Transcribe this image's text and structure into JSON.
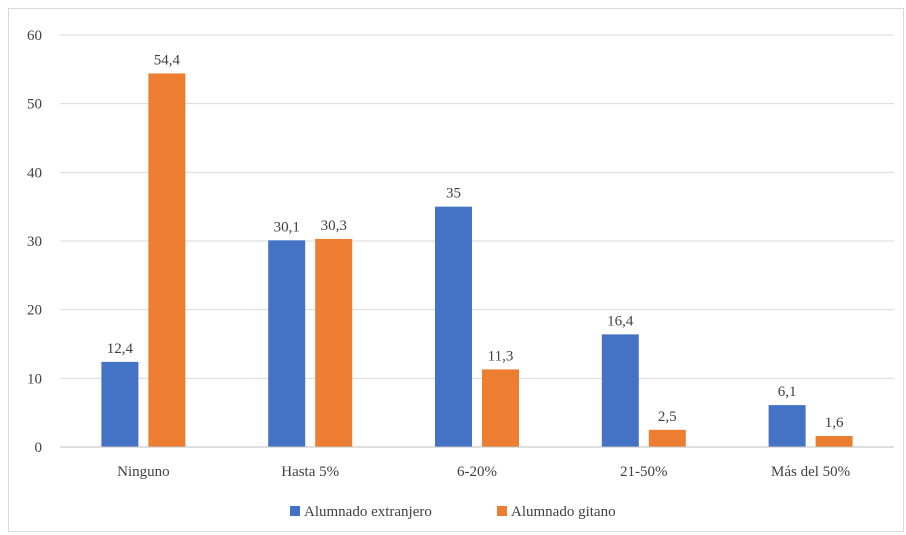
{
  "chart_data": {
    "type": "bar",
    "title": "",
    "xlabel": "",
    "ylabel": "",
    "ylim": [
      0,
      60
    ],
    "yticks": [
      0,
      10,
      20,
      30,
      40,
      50,
      60
    ],
    "grid": true,
    "legend_position": "bottom",
    "categories": [
      "Ninguno",
      "Hasta 5%",
      "6-20%",
      "21-50%",
      "Más del 50%"
    ],
    "series": [
      {
        "name": "Alumnado extranjero",
        "color": "#4472c4",
        "values": [
          12.4,
          30.1,
          35,
          16.4,
          6.1
        ],
        "labels": [
          "12,4",
          "30,1",
          "35",
          "16,4",
          "6,1"
        ]
      },
      {
        "name": "Alumnado gitano",
        "color": "#ed7d31",
        "values": [
          54.4,
          30.3,
          11.3,
          2.5,
          1.6
        ],
        "labels": [
          "54,4",
          "30,3",
          "11,3",
          "2,5",
          "1,6"
        ]
      }
    ]
  }
}
